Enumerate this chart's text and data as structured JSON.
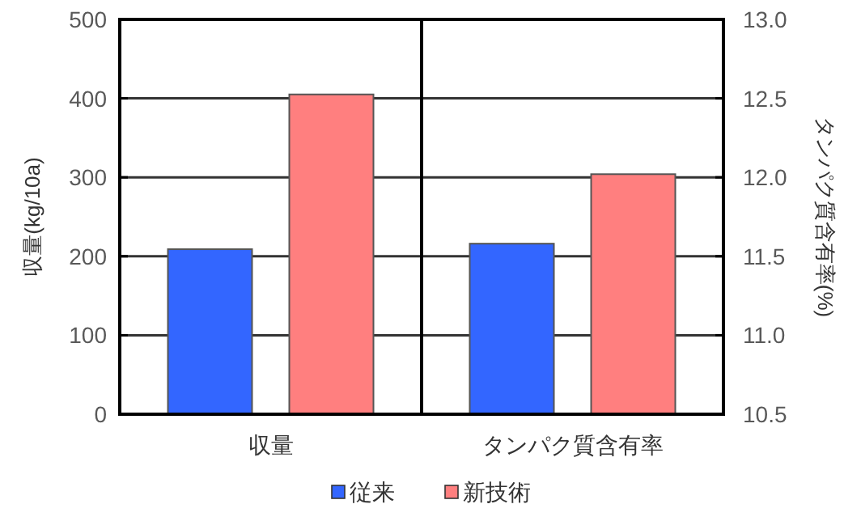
{
  "chart_data": [
    {
      "type": "bar",
      "categories": [
        "収量"
      ],
      "ylabel": "収量(kg/10a)",
      "ylim": [
        0,
        500
      ],
      "yticks": [
        0,
        100,
        200,
        300,
        400,
        500
      ],
      "grid": "y",
      "legend": "bottom",
      "series": [
        {
          "name": "従来",
          "color": "#3366ff",
          "values": [
            209
          ]
        },
        {
          "name": "新技術",
          "color": "#ff7f7f",
          "values": [
            405
          ]
        }
      ]
    },
    {
      "type": "bar",
      "categories": [
        "タンパク質含有率"
      ],
      "y2label": "タンパク質含有率(%)",
      "y2lim": [
        10.5,
        13.0
      ],
      "y2ticks": [
        {
          "value": 10.5,
          "label": "10.5"
        },
        {
          "value": 11,
          "label": "11.0"
        },
        {
          "value": 11.5,
          "label": "11.5"
        },
        {
          "value": 12,
          "label": "12.0"
        },
        {
          "value": 12.5,
          "label": "12.5"
        },
        {
          "value": 13,
          "label": "13.0"
        }
      ],
      "grid": "y",
      "series": [
        {
          "color": "#3366ff",
          "values": [
            11.58
          ],
          "axis": "y2"
        },
        {
          "color": "#ff7f7f",
          "values": [
            12.02
          ],
          "axis": "y2"
        }
      ]
    }
  ]
}
